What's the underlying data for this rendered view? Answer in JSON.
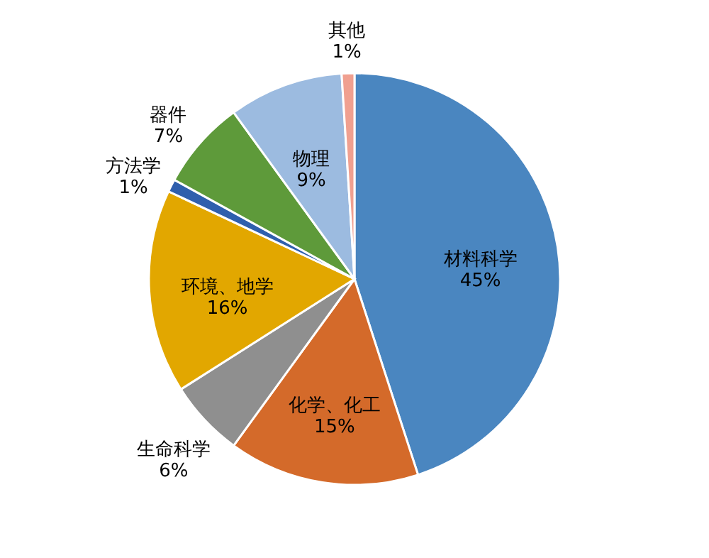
{
  "chart_data": {
    "type": "pie",
    "categories": [
      "材料科学",
      "化学、化工",
      "生命科学",
      "环境、地学",
      "方法学",
      "器件",
      "物理",
      "其他"
    ],
    "values": [
      45,
      15,
      6,
      16,
      1,
      7,
      9,
      1
    ],
    "colors": [
      "#4a86c0",
      "#d46a2a",
      "#8f8f8f",
      "#e2a700",
      "#2f5fad",
      "#5e9a3a",
      "#9cbbe0",
      "#f0a090"
    ],
    "value_labels": [
      "45%",
      "15%",
      "6%",
      "16%",
      "1%",
      "7%",
      "9%",
      "1%"
    ],
    "legend": false
  }
}
